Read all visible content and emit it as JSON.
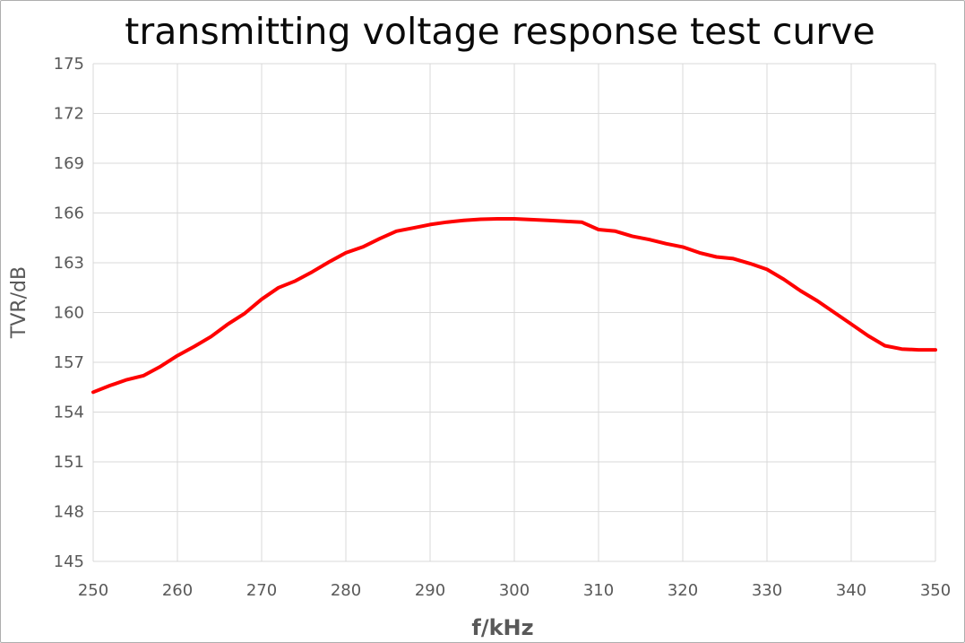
{
  "chart_data": {
    "type": "line",
    "title": "transmitting voltage response test curve",
    "xlabel": "f/kHz",
    "ylabel": "TVR/dB",
    "xlim": [
      250,
      350
    ],
    "ylim": [
      145,
      175
    ],
    "x_ticks": [
      250,
      260,
      270,
      280,
      290,
      300,
      310,
      320,
      330,
      340,
      350
    ],
    "y_ticks": [
      145,
      148,
      151,
      154,
      157,
      160,
      163,
      166,
      169,
      172,
      175
    ],
    "grid": true,
    "legend": false,
    "colors": {
      "line": "#ff0000",
      "grid": "#d9d9d9",
      "tick_label": "#595959",
      "title": "#0a0a0a",
      "panel_border": "#aeaeae"
    },
    "series": [
      {
        "name": "TVR",
        "x": [
          250,
          252,
          254,
          256,
          258,
          260,
          262,
          264,
          266,
          268,
          270,
          272,
          274,
          276,
          278,
          280,
          282,
          284,
          286,
          288,
          290,
          292,
          294,
          296,
          298,
          300,
          302,
          304,
          306,
          308,
          310,
          312,
          314,
          316,
          318,
          320,
          322,
          324,
          326,
          328,
          330,
          332,
          334,
          336,
          338,
          340,
          342,
          344,
          346,
          348,
          350
        ],
        "y": [
          155.2,
          155.6,
          155.95,
          156.2,
          156.75,
          157.4,
          157.95,
          158.55,
          159.3,
          159.95,
          160.8,
          161.5,
          161.9,
          162.45,
          163.05,
          163.6,
          163.95,
          164.45,
          164.9,
          165.1,
          165.3,
          165.45,
          165.55,
          165.62,
          165.65,
          165.65,
          165.6,
          165.55,
          165.5,
          165.45,
          165.0,
          164.9,
          164.6,
          164.4,
          164.15,
          163.95,
          163.6,
          163.35,
          163.25,
          162.95,
          162.6,
          162.0,
          161.3,
          160.7,
          160.0,
          159.3,
          158.6,
          158.0,
          157.8,
          157.75,
          157.75
        ]
      }
    ]
  }
}
